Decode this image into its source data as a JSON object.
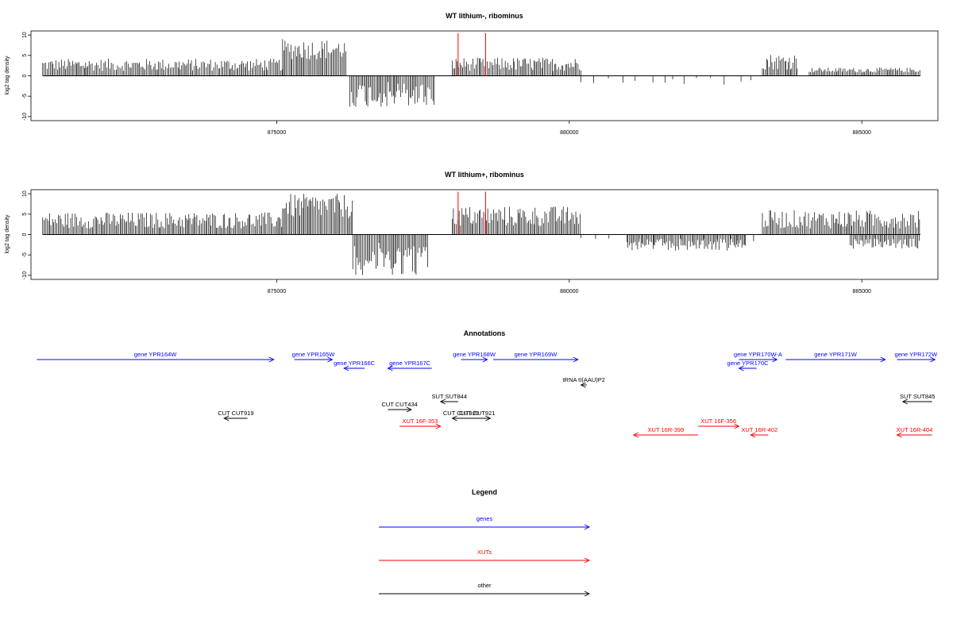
{
  "chart_data": [
    {
      "type": "bar",
      "title": "WT lithium-, ribominus",
      "ylabel": "log2 tag density",
      "xlim": [
        870800,
        886300
      ],
      "ylim": [
        -11,
        11
      ],
      "x_ticks": [
        875000,
        880000,
        885000
      ],
      "y_ticks": [
        10,
        5,
        0,
        -5,
        -10
      ],
      "x_tick_labels": [
        "875000",
        "880000",
        "885000"
      ],
      "y_tick_labels": [
        "10",
        "5",
        "0",
        "-5",
        "-10"
      ],
      "red_markers": [
        {
          "x": 878100,
          "y": 10.5
        },
        {
          "x": 878570,
          "y": 10.5
        }
      ],
      "coverage_segments": [
        {
          "start": 871000,
          "end": 875100,
          "strand": "+",
          "max": 4.2,
          "min": 1.2
        },
        {
          "start": 875100,
          "end": 876200,
          "strand": "+",
          "max": 9,
          "min": 4
        },
        {
          "start": 876250,
          "end": 877700,
          "strand": "-",
          "max": 7.8,
          "min": 1.5
        },
        {
          "start": 878000,
          "end": 880200,
          "strand": "+",
          "max": 4.5,
          "min": 1.2
        },
        {
          "start": 883300,
          "end": 883900,
          "strand": "+",
          "max": 5.5,
          "min": 1.5
        },
        {
          "start": 884100,
          "end": 886000,
          "strand": "+",
          "max": 2,
          "min": 0.8
        }
      ]
    },
    {
      "type": "bar",
      "title": "WT lithium+, ribominus",
      "ylabel": "log2 tag density",
      "xlim": [
        870800,
        886300
      ],
      "ylim": [
        -11,
        11
      ],
      "x_ticks": [
        875000,
        880000,
        885000
      ],
      "y_ticks": [
        10,
        5,
        0,
        -5,
        -10
      ],
      "x_tick_labels": [
        "875000",
        "880000",
        "885000"
      ],
      "y_tick_labels": [
        "10",
        "5",
        "0",
        "-5",
        "-10"
      ],
      "red_markers": [
        {
          "x": 878100,
          "y": 10.5
        },
        {
          "x": 878570,
          "y": 10.5
        }
      ],
      "coverage_segments": [
        {
          "start": 871000,
          "end": 875100,
          "strand": "+",
          "max": 5.5,
          "min": 1.5
        },
        {
          "start": 875100,
          "end": 876300,
          "strand": "+",
          "max": 10,
          "min": 4
        },
        {
          "start": 876300,
          "end": 877600,
          "strand": "-",
          "max": 10,
          "min": 2
        },
        {
          "start": 878000,
          "end": 880200,
          "strand": "+",
          "max": 7,
          "min": 2
        },
        {
          "start": 881000,
          "end": 883000,
          "strand": "-",
          "max": 4,
          "min": 1
        },
        {
          "start": 883300,
          "end": 886000,
          "strand": "+",
          "max": 6,
          "min": 1.5
        },
        {
          "start": 884800,
          "end": 886000,
          "strand": "-",
          "max": 3.5,
          "min": 1
        }
      ]
    }
  ],
  "annotations": {
    "title": "Annotations",
    "features": [
      {
        "label": "gene YPR164W",
        "type": "gene",
        "start": 870900,
        "end": 874950,
        "dir": "+",
        "row": 0
      },
      {
        "label": "gene YPR165W",
        "type": "gene",
        "start": 875300,
        "end": 875950,
        "dir": "+",
        "row": 0
      },
      {
        "label": "gene YPR166C",
        "type": "gene",
        "start": 876150,
        "end": 876500,
        "dir": "-",
        "row": 1
      },
      {
        "label": "gene YPR167C",
        "type": "gene",
        "start": 876900,
        "end": 877650,
        "dir": "-",
        "row": 1
      },
      {
        "label": "gene YPR168W",
        "type": "gene",
        "start": 878150,
        "end": 878600,
        "dir": "+",
        "row": 0
      },
      {
        "label": "gene YPR169W",
        "type": "gene",
        "start": 878700,
        "end": 880150,
        "dir": "+",
        "row": 0
      },
      {
        "label": "gene YPR170W-A",
        "type": "gene",
        "start": 882900,
        "end": 883550,
        "dir": "+",
        "row": 0
      },
      {
        "label": "gene YPR170C",
        "type": "gene",
        "start": 882900,
        "end": 883200,
        "dir": "-",
        "row": 1
      },
      {
        "label": "gene YPR171W",
        "type": "gene",
        "start": 883700,
        "end": 885400,
        "dir": "+",
        "row": 0
      },
      {
        "label": "gene YPR172W",
        "type": "gene",
        "start": 885600,
        "end": 886250,
        "dir": "+",
        "row": 0
      },
      {
        "label": "tRNA tI(AAU)P2",
        "type": "other",
        "start": 880200,
        "end": 880300,
        "dir": "-",
        "row": 2
      },
      {
        "label": "SUT SUT844",
        "type": "other",
        "start": 877800,
        "end": 878100,
        "dir": "-",
        "row": 3
      },
      {
        "label": "SUT SUT845",
        "type": "other",
        "start": 885700,
        "end": 886200,
        "dir": "-",
        "row": 3
      },
      {
        "label": "CUT CUT434",
        "type": "other",
        "start": 876900,
        "end": 877300,
        "dir": "+",
        "row": 4
      },
      {
        "label": "CUT CUT919",
        "type": "other",
        "start": 874100,
        "end": 874500,
        "dir": "-",
        "row": 5
      },
      {
        "label": "CUT CUT920",
        "type": "other",
        "start": 878000,
        "end": 878300,
        "dir": "-",
        "row": 5
      },
      {
        "label": "CUT CUT921",
        "type": "other",
        "start": 878200,
        "end": 878650,
        "dir": "+",
        "row": 5
      },
      {
        "label": "XUT 16F-353",
        "type": "XUT",
        "start": 877100,
        "end": 877800,
        "dir": "+",
        "row": 6
      },
      {
        "label": "XUT 16F-356",
        "type": "XUT",
        "start": 882200,
        "end": 882900,
        "dir": "+",
        "row": 6
      },
      {
        "label": "XUT 16R-399",
        "type": "XUT",
        "start": 881100,
        "end": 882200,
        "dir": "-",
        "row": 7
      },
      {
        "label": "XUT 16R-402",
        "type": "XUT",
        "start": 883100,
        "end": 883400,
        "dir": "-",
        "row": 7
      },
      {
        "label": "XUT 16R-404",
        "type": "XUT",
        "start": 885600,
        "end": 886200,
        "dir": "-",
        "row": 7
      }
    ]
  },
  "legend": {
    "title": "Legend",
    "items": [
      {
        "label": "genes",
        "color": "#0000ff"
      },
      {
        "label": "XUTs",
        "color": "#ff0000"
      },
      {
        "label": "other",
        "color": "#000000"
      }
    ]
  },
  "colors": {
    "gene": "#0000ff",
    "XUT": "#ff0000",
    "other": "#000000",
    "marker": "#ff0000"
  }
}
